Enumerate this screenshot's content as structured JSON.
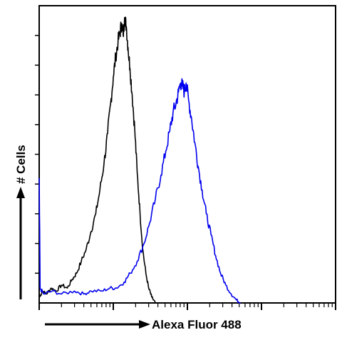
{
  "chart_data": {
    "type": "histogram-overlay",
    "title": "",
    "xlabel": "Alexa Fluor 488",
    "ylabel": "# Cells",
    "x_scale": "log",
    "xlim": [
      1,
      10000
    ],
    "ylim": [
      0,
      100
    ],
    "grid": false,
    "legend": "none",
    "series": [
      {
        "color": "#000000",
        "points": [
          [
            1.02,
            2
          ],
          [
            1.1,
            4
          ],
          [
            1.25,
            3
          ],
          [
            1.45,
            5
          ],
          [
            1.7,
            4
          ],
          [
            2.0,
            6
          ],
          [
            2.4,
            5
          ],
          [
            2.8,
            8
          ],
          [
            3.2,
            10
          ],
          [
            3.7,
            14
          ],
          [
            4.3,
            18
          ],
          [
            5.0,
            24
          ],
          [
            5.8,
            30
          ],
          [
            6.6,
            38
          ],
          [
            7.5,
            47
          ],
          [
            8.4,
            57
          ],
          [
            9.2,
            67
          ],
          [
            10.0,
            76
          ],
          [
            10.8,
            83
          ],
          [
            11.6,
            88
          ],
          [
            12.3,
            91
          ],
          [
            13.0,
            94
          ],
          [
            13.6,
            90
          ],
          [
            14.2,
            96
          ],
          [
            15.0,
            93
          ],
          [
            15.8,
            86
          ],
          [
            16.8,
            79
          ],
          [
            18.0,
            70
          ],
          [
            19.5,
            58
          ],
          [
            21.0,
            44
          ],
          [
            23.0,
            30
          ],
          [
            25.0,
            18
          ],
          [
            27.5,
            10
          ],
          [
            30.0,
            5
          ],
          [
            33.0,
            2
          ],
          [
            37.0,
            0
          ]
        ]
      },
      {
        "color": "#0000ee",
        "points": [
          [
            1.0,
            42
          ],
          [
            1.03,
            5
          ],
          [
            1.15,
            3
          ],
          [
            1.5,
            4
          ],
          [
            2.0,
            3
          ],
          [
            3.0,
            4
          ],
          [
            4.0,
            3
          ],
          [
            5.0,
            4
          ],
          [
            7.0,
            4
          ],
          [
            9.0,
            5
          ],
          [
            11.0,
            5
          ],
          [
            14.0,
            7
          ],
          [
            17.0,
            10
          ],
          [
            21.0,
            14
          ],
          [
            26.0,
            20
          ],
          [
            31.0,
            27
          ],
          [
            37.0,
            35
          ],
          [
            44.0,
            43
          ],
          [
            51.0,
            51
          ],
          [
            58.0,
            58
          ],
          [
            64.0,
            64
          ],
          [
            70.0,
            67
          ],
          [
            76.0,
            71
          ],
          [
            81.0,
            74
          ],
          [
            86.0,
            73
          ],
          [
            91.0,
            71
          ],
          [
            96.0,
            74
          ],
          [
            104.0,
            68
          ],
          [
            114.0,
            62
          ],
          [
            126.0,
            54
          ],
          [
            140.0,
            46
          ],
          [
            158.0,
            38
          ],
          [
            180.0,
            30
          ],
          [
            208.0,
            23
          ],
          [
            240.0,
            16
          ],
          [
            280.0,
            10
          ],
          [
            330.0,
            6
          ],
          [
            390.0,
            3
          ],
          [
            460.0,
            1
          ],
          [
            520.0,
            0
          ]
        ]
      }
    ]
  }
}
